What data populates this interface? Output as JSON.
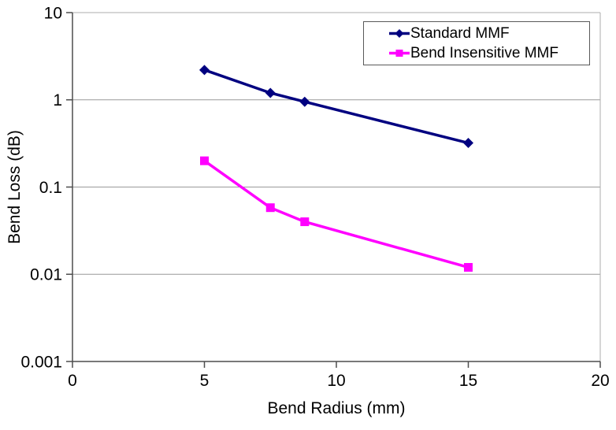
{
  "chart_data": {
    "type": "line",
    "title": "",
    "xlabel": "Bend Radius (mm)",
    "ylabel": "Bend Loss (dB)",
    "x": [
      5,
      7.5,
      8.8,
      15
    ],
    "series": [
      {
        "name": "Standard MMF",
        "values": [
          2.2,
          1.2,
          0.95,
          0.32
        ],
        "color": "#000080",
        "marker": "diamond"
      },
      {
        "name": "Bend Insensitive MMF",
        "values": [
          0.2,
          0.058,
          0.04,
          0.012
        ],
        "color": "#FF00FF",
        "marker": "square"
      }
    ],
    "xlim": [
      0,
      20
    ],
    "ylim": [
      0.001,
      10
    ],
    "y_scale": "log",
    "x_scale": "linear",
    "x_ticks": [
      0,
      5,
      10,
      15,
      20
    ],
    "x_tick_labels": [
      "0",
      "5",
      "10",
      "15",
      "20"
    ],
    "y_ticks": [
      10,
      1,
      0.1,
      0.01,
      0.001
    ],
    "y_tick_labels": [
      "10",
      "1",
      "0.1",
      "0.01",
      "0.001"
    ],
    "grid": "horizontal",
    "legend_position": "top-right",
    "colors": {
      "background": "#ffffff",
      "axis": "#4d4d4d",
      "gridline": "#999999",
      "plot_border": "#adadad",
      "legend_border": "#595959",
      "text": "#000000"
    }
  }
}
